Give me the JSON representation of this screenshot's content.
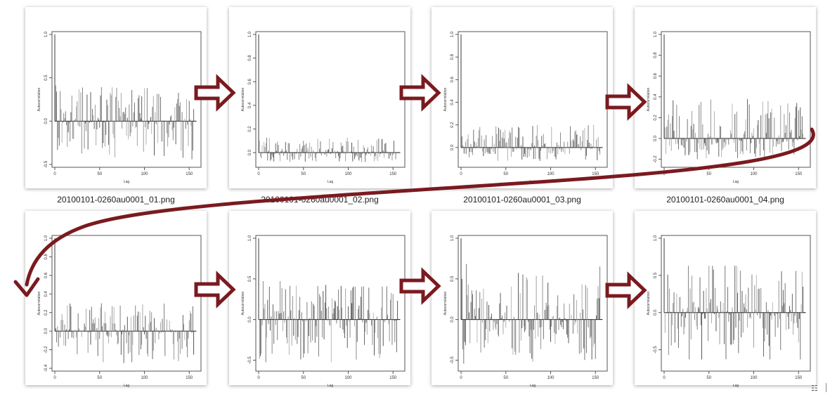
{
  "view_icon_glyph": "☷",
  "arrow_color": "#7a1a1f",
  "line_color": "#222222",
  "thumbnails": [
    {
      "filename": "20100101-0260au0001_01.png"
    },
    {
      "filename": "20100101-0260au0001_02.png"
    },
    {
      "filename": "20100101-0260au0001_03.png"
    },
    {
      "filename": "20100101-0260au0001_04.png"
    },
    {
      "filename": ""
    },
    {
      "filename": ""
    },
    {
      "filename": ""
    },
    {
      "filename": ""
    }
  ],
  "chart_data": [
    {
      "type": "bar",
      "subtype": "acf",
      "xlabel": "Lag",
      "ylabel": "Autocorrelation",
      "xlim": [
        0,
        160
      ],
      "ylim": [
        -0.5,
        1.0
      ],
      "xticks": [
        "0",
        "50",
        "100",
        "150"
      ],
      "yticks": [
        "-0.5",
        "0.0",
        "0.5",
        "1.0"
      ],
      "lag0": 1.0,
      "n_lags": 155,
      "typical_range": [
        -0.45,
        0.42
      ]
    },
    {
      "type": "bar",
      "subtype": "acf",
      "xlabel": "Lag",
      "ylabel": "Autocorrelation",
      "xlim": [
        0,
        160
      ],
      "ylim": [
        -0.1,
        1.0
      ],
      "xticks": [
        "0",
        "50",
        "100",
        "150"
      ],
      "yticks": [
        "0.0",
        "0.2",
        "0.4",
        "0.6",
        "0.8",
        "1.0"
      ],
      "lag0": 1.0,
      "n_lags": 155,
      "typical_range": [
        -0.08,
        0.14
      ]
    },
    {
      "type": "bar",
      "subtype": "acf",
      "xlabel": "Lag",
      "ylabel": "Autocorrelation",
      "xlim": [
        0,
        160
      ],
      "ylim": [
        -0.15,
        1.0
      ],
      "xticks": [
        "0",
        "50",
        "100",
        "150"
      ],
      "yticks": [
        "0.0",
        "0.2",
        "0.4",
        "0.6",
        "0.8",
        "1.0"
      ],
      "lag0": 1.0,
      "n_lags": 155,
      "typical_range": [
        -0.12,
        0.2
      ]
    },
    {
      "type": "bar",
      "subtype": "acf",
      "xlabel": "Lag",
      "ylabel": "Autocorrelation",
      "xlim": [
        0,
        160
      ],
      "ylim": [
        -0.25,
        1.0
      ],
      "xticks": [
        "0",
        "50",
        "100",
        "150"
      ],
      "yticks": [
        "-0.2",
        "0.0",
        "0.2",
        "0.4",
        "0.6",
        "0.8",
        "1.0"
      ],
      "lag0": 1.0,
      "n_lags": 155,
      "typical_range": [
        -0.2,
        0.38
      ]
    },
    {
      "type": "bar",
      "subtype": "acf",
      "xlabel": "Lag",
      "ylabel": "Autocorrelation",
      "xlim": [
        0,
        160
      ],
      "ylim": [
        -0.4,
        1.0
      ],
      "xticks": [
        "0",
        "50",
        "100",
        "150"
      ],
      "yticks": [
        "-0.4",
        "-0.2",
        "0.0",
        "0.2",
        "0.4",
        "0.6",
        "0.8",
        "1.0"
      ],
      "lag0": 1.0,
      "n_lags": 155,
      "typical_range": [
        -0.35,
        0.3
      ]
    },
    {
      "type": "bar",
      "subtype": "acf",
      "xlabel": "Lag",
      "ylabel": "Autocorrelation",
      "xlim": [
        0,
        160
      ],
      "ylim": [
        -0.6,
        1.0
      ],
      "xticks": [
        "0",
        "50",
        "100",
        "150"
      ],
      "yticks": [
        "-0.5",
        "0.0",
        "0.5",
        "1.0"
      ],
      "lag0": 1.0,
      "n_lags": 155,
      "typical_range": [
        -0.5,
        0.45
      ]
    },
    {
      "type": "bar",
      "subtype": "acf",
      "xlabel": "Lag",
      "ylabel": "Autocorrelation",
      "xlim": [
        0,
        160
      ],
      "ylim": [
        -0.6,
        1.0
      ],
      "xticks": [
        "0",
        "50",
        "100",
        "150"
      ],
      "yticks": [
        "-0.5",
        "0.0",
        "0.5",
        "1.0"
      ],
      "lag0": 1.0,
      "n_lags": 155,
      "typical_range": [
        -0.55,
        0.7
      ]
    },
    {
      "type": "bar",
      "subtype": "acf",
      "xlabel": "Lag",
      "ylabel": "Autocorrelation",
      "xlim": [
        0,
        160
      ],
      "ylim": [
        -0.75,
        1.0
      ],
      "xticks": [
        "0",
        "50",
        "100",
        "150"
      ],
      "yticks": [
        "-0.5",
        "0.0",
        "0.5",
        "1.0"
      ],
      "lag0": 1.0,
      "n_lags": 155,
      "typical_range": [
        -0.6,
        0.6
      ]
    }
  ]
}
